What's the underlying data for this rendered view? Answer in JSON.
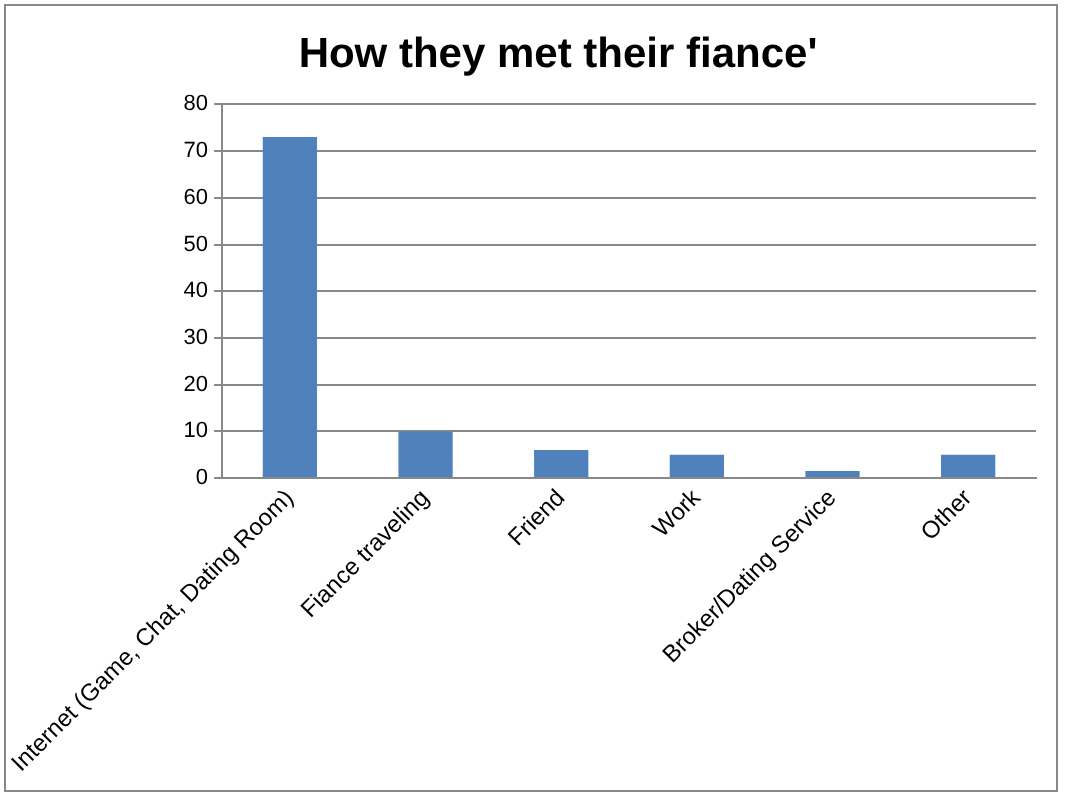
{
  "chart_data": {
    "type": "bar",
    "title": "How they met their fiance'",
    "categories": [
      "Internet (Game, Chat, Dating Room)",
      "Fiance traveling",
      "Friend",
      "Work",
      "Broker/Dating Service",
      "Other"
    ],
    "values": [
      73,
      10,
      6,
      5,
      1.5,
      5
    ],
    "color": "#4f81bd",
    "ylim": [
      0,
      80
    ],
    "yticks": [
      0,
      10,
      20,
      30,
      40,
      50,
      60,
      70,
      80
    ],
    "grid": "y",
    "legend": false
  }
}
